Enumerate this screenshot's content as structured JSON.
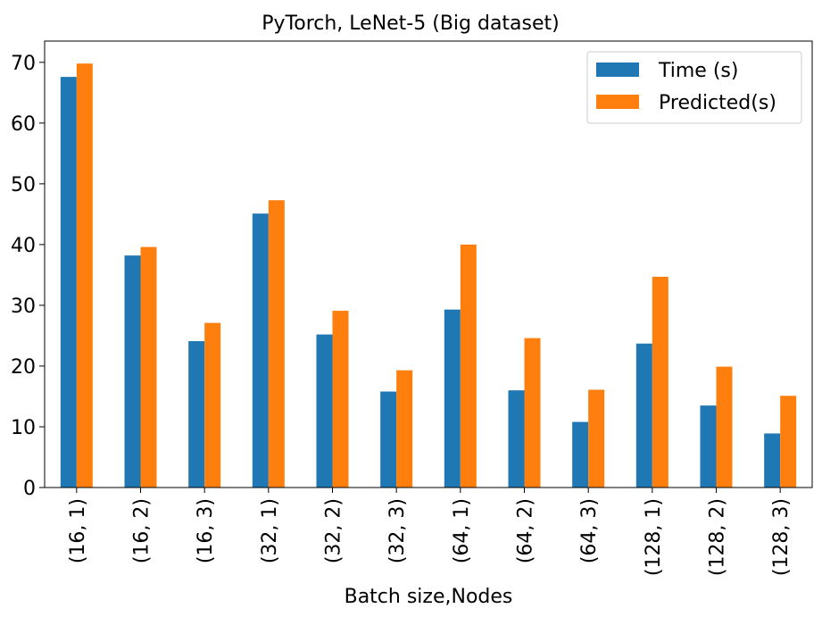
{
  "chart_data": {
    "type": "bar",
    "title": "PyTorch, LeNet-5 (Big dataset)",
    "xlabel": "Batch size,Nodes",
    "ylabel": "",
    "ylim": [
      0,
      73.5
    ],
    "yticks": [
      0,
      10,
      20,
      30,
      40,
      50,
      60,
      70
    ],
    "grid": false,
    "legend_position": "top-right",
    "categories": [
      "(16, 1)",
      "(16, 2)",
      "(16, 3)",
      "(32, 1)",
      "(32, 2)",
      "(32, 3)",
      "(64, 1)",
      "(64, 2)",
      "(64, 3)",
      "(128, 1)",
      "(128, 2)",
      "(128, 3)"
    ],
    "series": [
      {
        "name": "Time (s)",
        "color": "#1f77b4",
        "values": [
          67.6,
          38.2,
          24.1,
          45.1,
          25.2,
          15.8,
          29.3,
          16.0,
          10.8,
          23.7,
          13.5,
          8.9
        ]
      },
      {
        "name": "Predicted(s)",
        "color": "#ff7f0e",
        "values": [
          69.8,
          39.6,
          27.1,
          47.3,
          29.1,
          19.3,
          40.0,
          24.6,
          16.1,
          34.7,
          19.9,
          15.1
        ]
      }
    ]
  }
}
